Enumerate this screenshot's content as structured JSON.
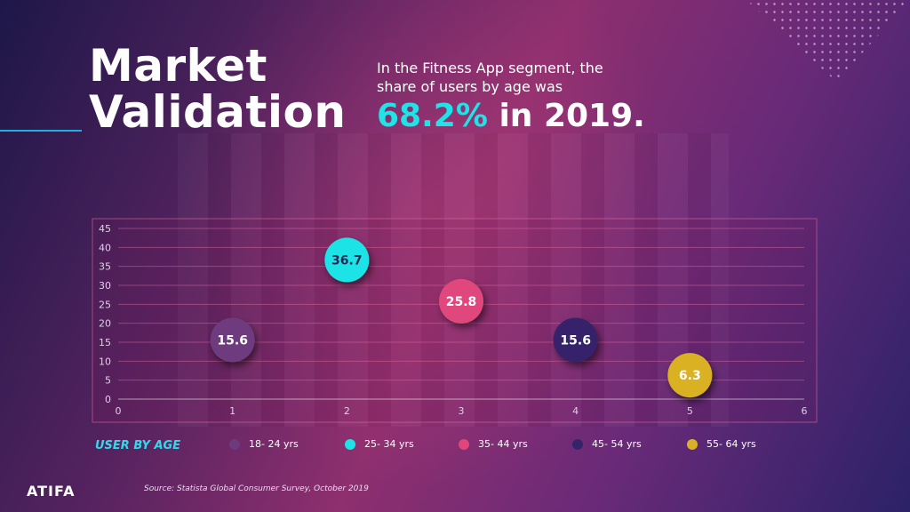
{
  "title": "Market\nValidation",
  "subtitle": "In the Fitness App segment, the share of users by age was",
  "headline": {
    "percent": "68.2%",
    "rest": " in 2019."
  },
  "legend_title": "USER BY AGE",
  "source": "Source: Statista Global Consumer Survey, October 2019",
  "logo_text": "ATIFA",
  "chart_data": {
    "type": "scatter",
    "x_ticks": [
      "0",
      "1",
      "2",
      "3",
      "4",
      "5",
      "6"
    ],
    "y_ticks": [
      "0",
      "5",
      "10",
      "15",
      "20",
      "25",
      "30",
      "35",
      "40",
      "45"
    ],
    "xlim": [
      0,
      6
    ],
    "ylim": [
      0,
      45
    ],
    "grid": true,
    "legend_placement": "bottom",
    "series": [
      {
        "name": "18- 24 yrs",
        "x": 1,
        "y": 15.6,
        "label": "15.6",
        "color": "#6e3a7e"
      },
      {
        "name": "25- 34 yrs",
        "x": 2,
        "y": 36.7,
        "label": "36.7",
        "color": "#1ee3e6"
      },
      {
        "name": "35- 44 yrs",
        "x": 3,
        "y": 25.8,
        "label": "25.8",
        "color": "#e0467c"
      },
      {
        "name": "45- 54 yrs",
        "x": 4,
        "y": 15.6,
        "label": "15.6",
        "color": "#34246a"
      },
      {
        "name": "55- 64 yrs",
        "x": 5,
        "y": 6.3,
        "label": "6.3",
        "color": "#d9b124"
      }
    ]
  }
}
